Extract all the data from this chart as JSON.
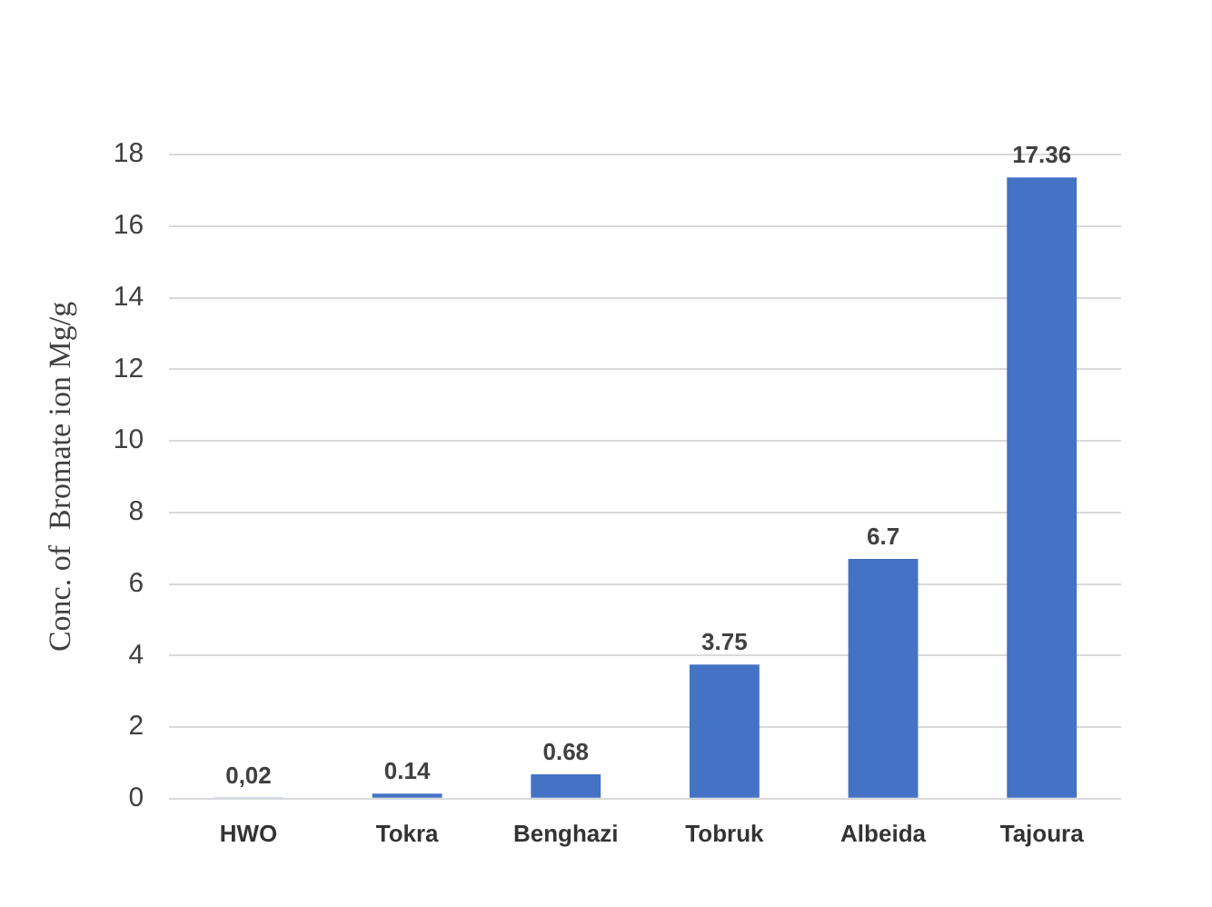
{
  "chart_data": {
    "type": "bar",
    "ylabel": "Conc. of  Bromate ion Mg/g",
    "categories": [
      "HWO",
      "Tokra",
      "Benghazi",
      "Tobruk",
      "Albeida",
      "Tajoura"
    ],
    "values": [
      0.02,
      0.14,
      0.68,
      3.75,
      6.7,
      17.36
    ],
    "value_labels": [
      "0,02",
      "0.14",
      "0.68",
      "3.75",
      "6.7",
      "17.36"
    ],
    "color": "#4472c4",
    "ylim": [
      0,
      18
    ],
    "yticks": [
      0,
      2,
      4,
      6,
      8,
      10,
      12,
      14,
      16,
      18
    ],
    "grid": "y"
  }
}
